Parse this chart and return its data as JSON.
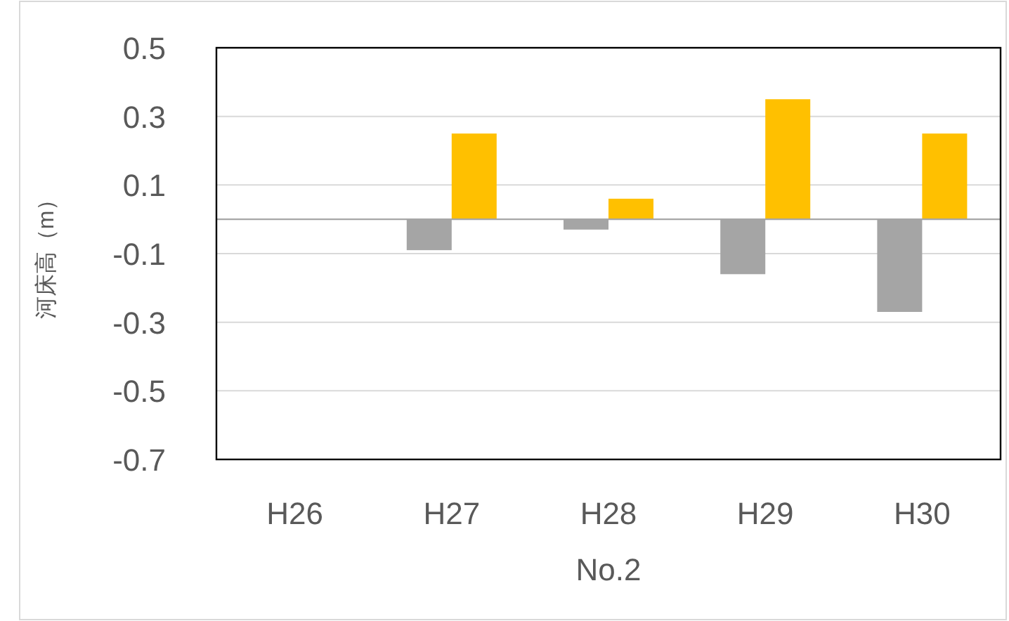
{
  "chart_data": {
    "type": "bar",
    "ylabel": "河床高（m）",
    "xlabel": "No.2",
    "categories": [
      "H26",
      "H27",
      "H28",
      "H29",
      "H30"
    ],
    "series": [
      {
        "color": "#a5a5a5",
        "values": [
          null,
          -0.09,
          -0.03,
          -0.16,
          -0.27
        ]
      },
      {
        "color": "#ffc000",
        "values": [
          null,
          0.25,
          0.06,
          0.35,
          0.25
        ]
      }
    ],
    "ylim": [
      -0.7,
      0.5
    ],
    "yticks": [
      -0.7,
      -0.5,
      -0.3,
      -0.1,
      0.1,
      0.3,
      0.5
    ],
    "grid": "y"
  }
}
